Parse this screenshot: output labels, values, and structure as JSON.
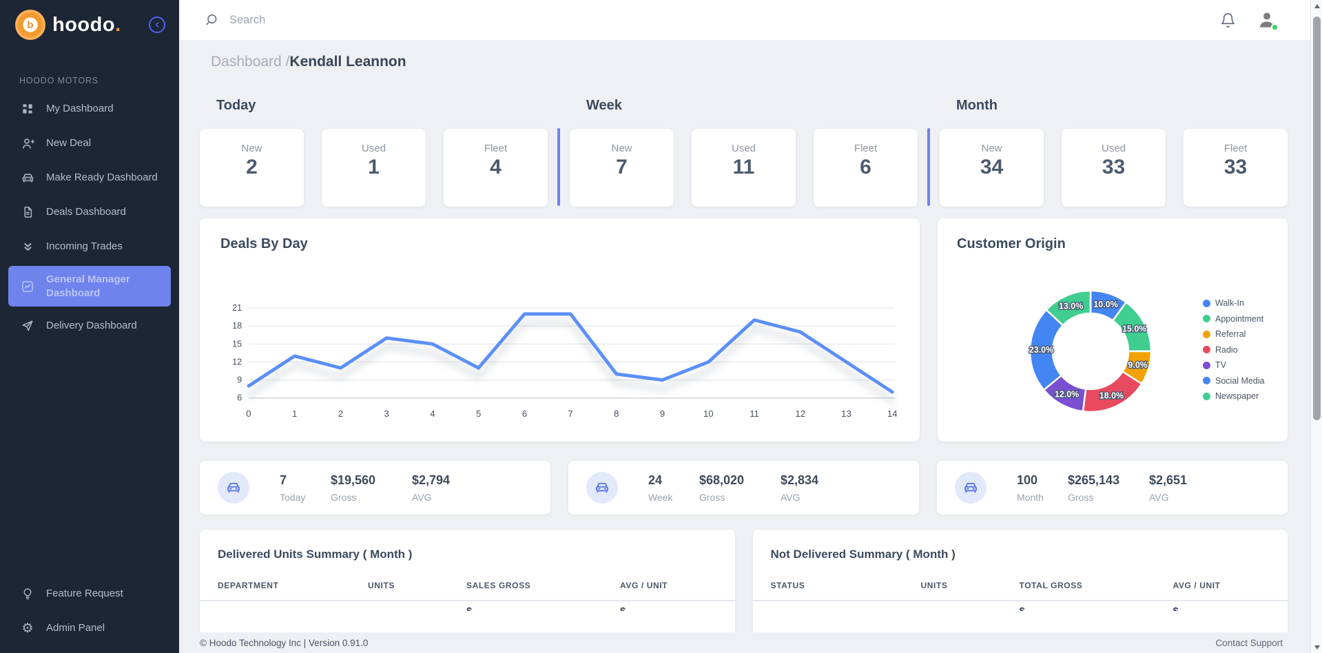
{
  "brand": {
    "logo_letter": "b",
    "logo_text": "hoodo",
    "logo_dot": ".",
    "section_label": "HOODO MOTORS"
  },
  "topbar": {
    "search_placeholder": "Search"
  },
  "breadcrumb": {
    "section": "Dashboard /",
    "current": "Kendall Leannon"
  },
  "sidebar": {
    "items": [
      {
        "label": "My Dashboard",
        "icon": "dashboard-grid-icon",
        "active": false
      },
      {
        "label": "New Deal",
        "icon": "user-plus-icon",
        "active": false
      },
      {
        "label": "Make Ready Dashboard",
        "icon": "car-icon",
        "active": false
      },
      {
        "label": "Deals Dashboard",
        "icon": "document-icon",
        "active": false
      },
      {
        "label": "Incoming Trades",
        "icon": "double-chevron-down-icon",
        "active": false
      },
      {
        "label": "General Manager Dashboard",
        "icon": "chart-panel-icon",
        "active": true
      },
      {
        "label": "Delivery Dashboard",
        "icon": "send-icon",
        "active": false
      }
    ],
    "footer_items": [
      {
        "label": "Feature Request",
        "icon": "lightbulb-icon"
      },
      {
        "label": "Admin Panel",
        "icon": "gear-icon"
      }
    ]
  },
  "stats": {
    "groups": [
      {
        "title": "Today",
        "cards": [
          {
            "label": "New",
            "value": "2"
          },
          {
            "label": "Used",
            "value": "1"
          },
          {
            "label": "Fleet",
            "value": "4"
          }
        ]
      },
      {
        "title": "Week",
        "cards": [
          {
            "label": "New",
            "value": "7"
          },
          {
            "label": "Used",
            "value": "11"
          },
          {
            "label": "Fleet",
            "value": "6"
          }
        ]
      },
      {
        "title": "Month",
        "cards": [
          {
            "label": "New",
            "value": "34"
          },
          {
            "label": "Used",
            "value": "33"
          },
          {
            "label": "Fleet",
            "value": "33"
          }
        ]
      }
    ]
  },
  "summary_cards": [
    {
      "count": "7",
      "count_label": "Today",
      "gross": "$19,560",
      "gross_label": "Gross",
      "avg": "$2,794",
      "avg_label": "AVG"
    },
    {
      "count": "24",
      "count_label": "Week",
      "gross": "$68,020",
      "gross_label": "Gross",
      "avg": "$2,834",
      "avg_label": "AVG"
    },
    {
      "count": "100",
      "count_label": "Month",
      "gross": "$265,143",
      "gross_label": "Gross",
      "avg": "$2,651",
      "avg_label": "AVG"
    }
  ],
  "tables": [
    {
      "title": "Delivered Units Summary ( Month )",
      "columns": [
        "DEPARTMENT",
        "UNITS",
        "SALES GROSS",
        "AVG / UNIT"
      ],
      "partial_row": [
        "",
        "",
        "$",
        "$"
      ]
    },
    {
      "title": "Not Delivered Summary ( Month )",
      "columns": [
        "STATUS",
        "UNITS",
        "TOTAL GROSS",
        "AVG / UNIT"
      ],
      "partial_row": [
        "",
        "",
        "$",
        "$"
      ]
    }
  ],
  "footer": {
    "copyright": "© Hoodo Technology Inc | Version 0.91.0",
    "support_link": "Contact Support"
  },
  "chart_data": [
    {
      "type": "line",
      "title": "Deals By Day",
      "x": [
        0,
        1,
        2,
        3,
        4,
        5,
        6,
        7,
        8,
        9,
        10,
        11,
        12,
        13,
        14
      ],
      "values": [
        8,
        13,
        11,
        16,
        15,
        11,
        20,
        20,
        10,
        9,
        12,
        19,
        17,
        12,
        7
      ],
      "yticks": [
        6,
        9,
        12,
        15,
        18,
        21
      ],
      "ylim": [
        6,
        21
      ],
      "xlabel": "",
      "ylabel": "",
      "grid": true,
      "line_color": "#5b8ff9"
    },
    {
      "type": "donut",
      "title": "Customer Origin",
      "legend_position": "right",
      "segments": [
        {
          "label": "Walk-In",
          "value": 10.0,
          "color": "#4485f4"
        },
        {
          "label": "Appointment",
          "value": 15.0,
          "color": "#3fce8f"
        },
        {
          "label": "Referral",
          "value": 9.0,
          "color": "#f2a104"
        },
        {
          "label": "Radio",
          "value": 18.0,
          "color": "#e84a5f"
        },
        {
          "label": "TV",
          "value": 12.0,
          "color": "#7a4fd2"
        },
        {
          "label": "Social Media",
          "value": 23.0,
          "color": "#4485f4"
        },
        {
          "label": "Newspaper",
          "value": 13.0,
          "color": "#3fce8f"
        }
      ]
    }
  ],
  "colors": {
    "accent": "#6f83ec",
    "sidebar_bg": "#1d2634",
    "line": "#5b8ff9",
    "online_dot": "#34d36b",
    "logo_orange": "#f2992e"
  }
}
